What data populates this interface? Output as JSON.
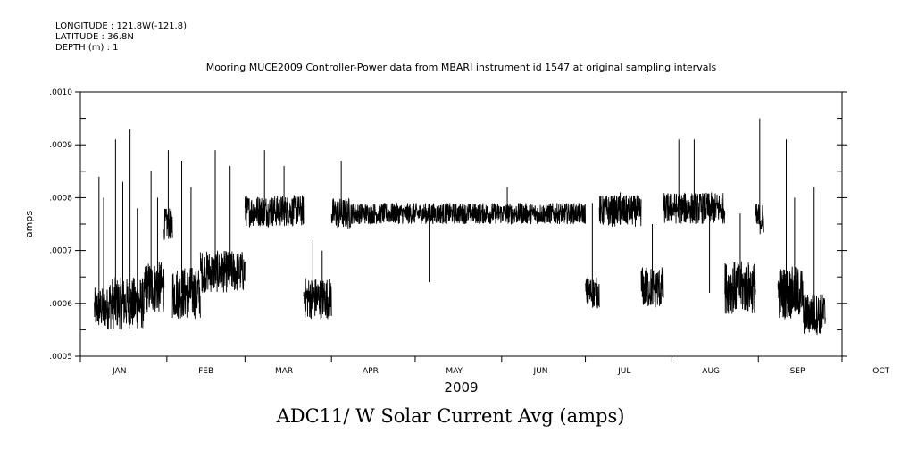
{
  "header": {
    "longitude": "LONGITUDE : 121.8W(-121.8)",
    "latitude": "LATITUDE : 36.8N",
    "depth": "DEPTH (m) : 1",
    "title": "Mooring MUCE2009 Controller-Power data from MBARI instrument id 1547 at original sampling intervals"
  },
  "footer": {
    "variable": "ADC11/ W Solar Current Avg (amps)"
  },
  "chart_data": {
    "type": "line",
    "title": "Mooring MUCE2009 Controller-Power data from MBARI instrument id 1547 at original sampling intervals",
    "xlabel": "2009",
    "ylabel": "amps",
    "ylim": [
      0.0005,
      0.001
    ],
    "y_ticks": [
      ".0005",
      ".0006",
      ".0007",
      ".0008",
      ".0009",
      ".0010"
    ],
    "x_ticks": [
      "JAN",
      "FEB",
      "MAR",
      "APR",
      "MAY",
      "JUN",
      "JUL",
      "AUG",
      "SEP",
      "OCT"
    ],
    "grid": false,
    "series": [
      {
        "segments": [
          {
            "start": "2009-01-06",
            "end": "2009-01-11",
            "base": 0.00059,
            "noise": 4e-05,
            "spikes": [
              0.00084,
              0.0008
            ]
          },
          {
            "start": "2009-01-11",
            "end": "2009-01-24",
            "base": 0.0006,
            "noise": 5e-05,
            "spikes": [
              0.00091,
              0.00083,
              0.00093,
              0.00078
            ]
          },
          {
            "start": "2009-01-24",
            "end": "2009-01-31",
            "base": 0.00063,
            "noise": 5e-05,
            "spikes": [
              0.00085,
              0.0008
            ]
          },
          {
            "start": "2009-01-31",
            "end": "2009-02-03",
            "base": 0.00075,
            "noise": 3e-05,
            "spikes": [
              0.00089
            ]
          },
          {
            "start": "2009-02-03",
            "end": "2009-02-13",
            "base": 0.00062,
            "noise": 5e-05,
            "spikes": [
              0.00087,
              0.00082
            ]
          },
          {
            "start": "2009-02-13",
            "end": "2009-03-01",
            "base": 0.00066,
            "noise": 4e-05,
            "spikes": [
              0.00089,
              0.00086
            ]
          },
          {
            "start": "2009-03-01",
            "end": "2009-03-22",
            "base": 0.000775,
            "noise": 3e-05,
            "spikes": [
              0.00089,
              0.00086
            ]
          },
          {
            "start": "2009-03-22",
            "end": "2009-04-01",
            "base": 0.00061,
            "noise": 4e-05,
            "spikes": [
              0.00072,
              0.0007
            ]
          },
          {
            "start": "2009-04-01",
            "end": "2009-04-08",
            "base": 0.00077,
            "noise": 3e-05,
            "spikes": [
              0.00087
            ]
          },
          {
            "start": "2009-04-08",
            "end": "2009-07-01",
            "base": 0.00077,
            "noise": 2e-05,
            "spikes": [
              0.00064,
              0.00082
            ]
          },
          {
            "start": "2009-07-01",
            "end": "2009-07-06",
            "base": 0.00062,
            "noise": 3e-05,
            "spikes": [
              0.00079
            ]
          },
          {
            "start": "2009-07-06",
            "end": "2009-07-21",
            "base": 0.000775,
            "noise": 3e-05,
            "spikes": [
              0.00081
            ]
          },
          {
            "start": "2009-07-21",
            "end": "2009-07-29",
            "base": 0.00063,
            "noise": 4e-05,
            "spikes": [
              0.00075
            ]
          },
          {
            "start": "2009-07-29",
            "end": "2009-08-20",
            "base": 0.00078,
            "noise": 3e-05,
            "spikes": [
              0.00091,
              0.00091,
              0.00062
            ]
          },
          {
            "start": "2009-08-20",
            "end": "2009-08-31",
            "base": 0.00063,
            "noise": 5e-05,
            "spikes": [
              0.00077
            ]
          },
          {
            "start": "2009-08-31",
            "end": "2009-09-03",
            "base": 0.00076,
            "noise": 3e-05,
            "spikes": [
              0.00095
            ]
          },
          {
            "start": "2009-09-08",
            "end": "2009-09-17",
            "base": 0.00062,
            "noise": 5e-05,
            "spikes": [
              0.00091,
              0.0008
            ]
          },
          {
            "start": "2009-09-17",
            "end": "2009-09-25",
            "base": 0.00058,
            "noise": 4e-05,
            "spikes": [
              0.00082
            ]
          }
        ]
      }
    ]
  }
}
